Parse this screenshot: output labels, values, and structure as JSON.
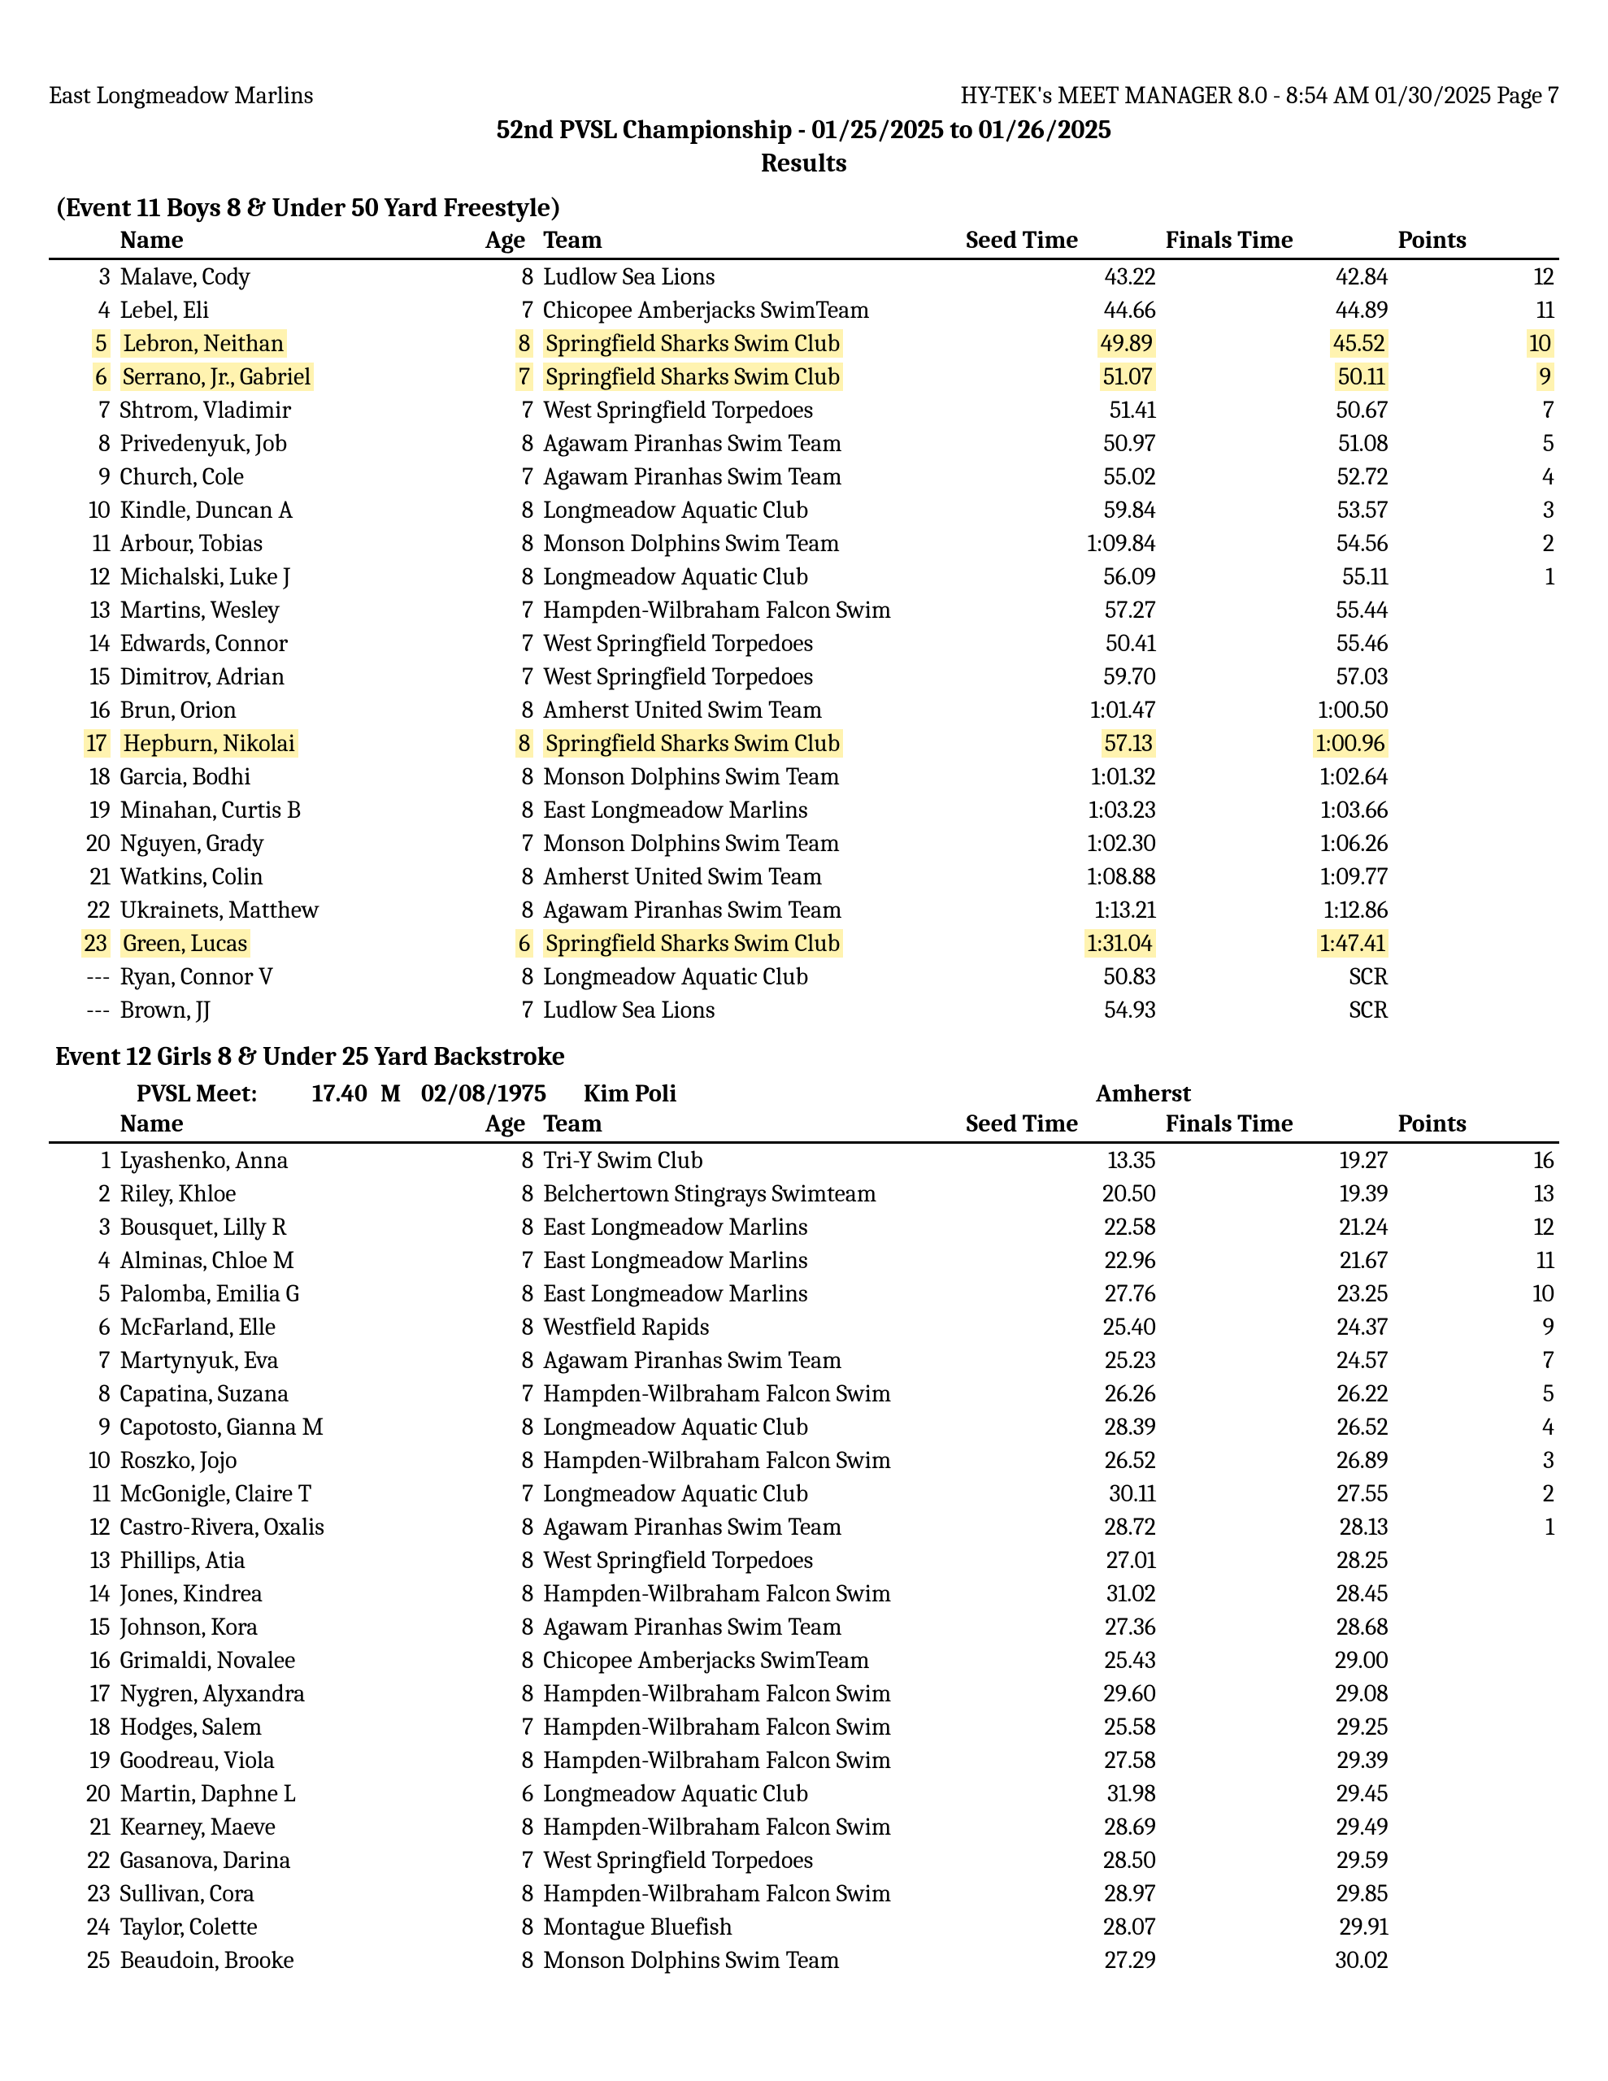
{
  "header": {
    "org_left": "East Longmeadow Marlins",
    "org_right": "HY-TEK's MEET MANAGER 8.0 - 8:54 AM  01/30/2025  Page 7",
    "meet_title": "52nd PVSL Championship - 01/25/2025 to 01/26/2025",
    "sub_title": "Results"
  },
  "columns": {
    "name": "Name",
    "age": "Age",
    "team": "Team",
    "seed": "Seed Time",
    "finals": "Finals Time",
    "points": "Points"
  },
  "colors": {
    "highlight": "#fff3b0",
    "text": "#000000",
    "rule": "#000000",
    "background": "#ffffff"
  },
  "event11": {
    "title": "(Event 11  Boys 8 & Under 50 Yard Freestyle)",
    "rows": [
      {
        "place": "3",
        "name": "Malave, Cody",
        "age": "8",
        "team": "Ludlow Sea Lions",
        "seed": "43.22",
        "finals": "42.84",
        "points": "12",
        "hl": false
      },
      {
        "place": "4",
        "name": "Lebel, Eli",
        "age": "7",
        "team": "Chicopee Amberjacks SwimTeam",
        "seed": "44.66",
        "finals": "44.89",
        "points": "11",
        "hl": false
      },
      {
        "place": "5",
        "name": "Lebron, Neithan",
        "age": "8",
        "team": "Springfield Sharks Swim Club",
        "seed": "49.89",
        "finals": "45.52",
        "points": "10",
        "hl": true
      },
      {
        "place": "6",
        "name": "Serrano, Jr., Gabriel",
        "age": "7",
        "team": "Springfield Sharks Swim Club",
        "seed": "51.07",
        "finals": "50.11",
        "points": "9",
        "hl": true
      },
      {
        "place": "7",
        "name": "Shtrom, Vladimir",
        "age": "7",
        "team": "West Springfield Torpedoes",
        "seed": "51.41",
        "finals": "50.67",
        "points": "7",
        "hl": false
      },
      {
        "place": "8",
        "name": "Privedenyuk, Job",
        "age": "8",
        "team": "Agawam Piranhas Swim Team",
        "seed": "50.97",
        "finals": "51.08",
        "points": "5",
        "hl": false
      },
      {
        "place": "9",
        "name": "Church, Cole",
        "age": "7",
        "team": "Agawam Piranhas Swim Team",
        "seed": "55.02",
        "finals": "52.72",
        "points": "4",
        "hl": false
      },
      {
        "place": "10",
        "name": "Kindle, Duncan A",
        "age": "8",
        "team": "Longmeadow Aquatic Club",
        "seed": "59.84",
        "finals": "53.57",
        "points": "3",
        "hl": false
      },
      {
        "place": "11",
        "name": "Arbour, Tobias",
        "age": "8",
        "team": "Monson Dolphins Swim Team",
        "seed": "1:09.84",
        "finals": "54.56",
        "points": "2",
        "hl": false
      },
      {
        "place": "12",
        "name": "Michalski, Luke J",
        "age": "8",
        "team": "Longmeadow Aquatic Club",
        "seed": "56.09",
        "finals": "55.11",
        "points": "1",
        "hl": false
      },
      {
        "place": "13",
        "name": "Martins, Wesley",
        "age": "7",
        "team": "Hampden-Wilbraham Falcon Swim",
        "seed": "57.27",
        "finals": "55.44",
        "points": "",
        "hl": false
      },
      {
        "place": "14",
        "name": "Edwards, Connor",
        "age": "7",
        "team": "West Springfield Torpedoes",
        "seed": "50.41",
        "finals": "55.46",
        "points": "",
        "hl": false
      },
      {
        "place": "15",
        "name": "Dimitrov, Adrian",
        "age": "7",
        "team": "West Springfield Torpedoes",
        "seed": "59.70",
        "finals": "57.03",
        "points": "",
        "hl": false
      },
      {
        "place": "16",
        "name": "Brun, Orion",
        "age": "8",
        "team": "Amherst United Swim Team",
        "seed": "1:01.47",
        "finals": "1:00.50",
        "points": "",
        "hl": false
      },
      {
        "place": "17",
        "name": "Hepburn, Nikolai",
        "age": "8",
        "team": "Springfield Sharks Swim Club",
        "seed": "57.13",
        "finals": "1:00.96",
        "points": "",
        "hl": true
      },
      {
        "place": "18",
        "name": "Garcia, Bodhi",
        "age": "8",
        "team": "Monson Dolphins Swim Team",
        "seed": "1:01.32",
        "finals": "1:02.64",
        "points": "",
        "hl": false
      },
      {
        "place": "19",
        "name": "Minahan, Curtis B",
        "age": "8",
        "team": "East Longmeadow Marlins",
        "seed": "1:03.23",
        "finals": "1:03.66",
        "points": "",
        "hl": false
      },
      {
        "place": "20",
        "name": "Nguyen, Grady",
        "age": "7",
        "team": "Monson Dolphins Swim Team",
        "seed": "1:02.30",
        "finals": "1:06.26",
        "points": "",
        "hl": false
      },
      {
        "place": "21",
        "name": "Watkins, Colin",
        "age": "8",
        "team": "Amherst United Swim Team",
        "seed": "1:08.88",
        "finals": "1:09.77",
        "points": "",
        "hl": false
      },
      {
        "place": "22",
        "name": "Ukrainets, Matthew",
        "age": "8",
        "team": "Agawam Piranhas Swim Team",
        "seed": "1:13.21",
        "finals": "1:12.86",
        "points": "",
        "hl": false
      },
      {
        "place": "23",
        "name": "Green, Lucas",
        "age": "6",
        "team": "Springfield Sharks Swim Club",
        "seed": "1:31.04",
        "finals": "1:47.41",
        "points": "",
        "hl": true
      },
      {
        "place": "---",
        "name": "Ryan, Connor V",
        "age": "8",
        "team": "Longmeadow Aquatic Club",
        "seed": "50.83",
        "finals": "SCR",
        "points": "",
        "hl": false
      },
      {
        "place": "---",
        "name": "Brown, JJ",
        "age": "7",
        "team": "Ludlow Sea Lions",
        "seed": "54.93",
        "finals": "SCR",
        "points": "",
        "hl": false
      }
    ]
  },
  "event12": {
    "title": "Event 12  Girls 8 & Under 25 Yard Backstroke",
    "record": {
      "label": "PVSL Meet:",
      "time": "17.40",
      "flag": "M",
      "date": "02/08/1975",
      "holder": "Kim Poli",
      "team": "Amherst"
    },
    "rows": [
      {
        "place": "1",
        "name": "Lyashenko, Anna",
        "age": "8",
        "team": "Tri-Y Swim Club",
        "seed": "13.35",
        "finals": "19.27",
        "points": "16"
      },
      {
        "place": "2",
        "name": "Riley, Khloe",
        "age": "8",
        "team": "Belchertown Stingrays Swimteam",
        "seed": "20.50",
        "finals": "19.39",
        "points": "13"
      },
      {
        "place": "3",
        "name": "Bousquet, Lilly R",
        "age": "8",
        "team": "East Longmeadow Marlins",
        "seed": "22.58",
        "finals": "21.24",
        "points": "12"
      },
      {
        "place": "4",
        "name": "Alminas, Chloe M",
        "age": "7",
        "team": "East Longmeadow Marlins",
        "seed": "22.96",
        "finals": "21.67",
        "points": "11"
      },
      {
        "place": "5",
        "name": "Palomba, Emilia G",
        "age": "8",
        "team": "East Longmeadow Marlins",
        "seed": "27.76",
        "finals": "23.25",
        "points": "10"
      },
      {
        "place": "6",
        "name": "McFarland, Elle",
        "age": "8",
        "team": "Westfield Rapids",
        "seed": "25.40",
        "finals": "24.37",
        "points": "9"
      },
      {
        "place": "7",
        "name": "Martynyuk, Eva",
        "age": "8",
        "team": "Agawam Piranhas Swim Team",
        "seed": "25.23",
        "finals": "24.57",
        "points": "7"
      },
      {
        "place": "8",
        "name": "Capatina, Suzana",
        "age": "7",
        "team": "Hampden-Wilbraham Falcon Swim",
        "seed": "26.26",
        "finals": "26.22",
        "points": "5"
      },
      {
        "place": "9",
        "name": "Capotosto, Gianna M",
        "age": "8",
        "team": "Longmeadow Aquatic Club",
        "seed": "28.39",
        "finals": "26.52",
        "points": "4"
      },
      {
        "place": "10",
        "name": "Roszko, Jojo",
        "age": "8",
        "team": "Hampden-Wilbraham Falcon Swim",
        "seed": "26.52",
        "finals": "26.89",
        "points": "3"
      },
      {
        "place": "11",
        "name": "McGonigle, Claire T",
        "age": "7",
        "team": "Longmeadow Aquatic Club",
        "seed": "30.11",
        "finals": "27.55",
        "points": "2"
      },
      {
        "place": "12",
        "name": "Castro-Rivera, Oxalis",
        "age": "8",
        "team": "Agawam Piranhas Swim Team",
        "seed": "28.72",
        "finals": "28.13",
        "points": "1"
      },
      {
        "place": "13",
        "name": "Phillips, Atia",
        "age": "8",
        "team": "West Springfield Torpedoes",
        "seed": "27.01",
        "finals": "28.25",
        "points": ""
      },
      {
        "place": "14",
        "name": "Jones, Kindrea",
        "age": "8",
        "team": "Hampden-Wilbraham Falcon Swim",
        "seed": "31.02",
        "finals": "28.45",
        "points": ""
      },
      {
        "place": "15",
        "name": "Johnson, Kora",
        "age": "8",
        "team": "Agawam Piranhas Swim Team",
        "seed": "27.36",
        "finals": "28.68",
        "points": ""
      },
      {
        "place": "16",
        "name": "Grimaldi, Novalee",
        "age": "8",
        "team": "Chicopee Amberjacks SwimTeam",
        "seed": "25.43",
        "finals": "29.00",
        "points": ""
      },
      {
        "place": "17",
        "name": "Nygren, Alyxandra",
        "age": "8",
        "team": "Hampden-Wilbraham Falcon Swim",
        "seed": "29.60",
        "finals": "29.08",
        "points": ""
      },
      {
        "place": "18",
        "name": "Hodges, Salem",
        "age": "7",
        "team": "Hampden-Wilbraham Falcon Swim",
        "seed": "25.58",
        "finals": "29.25",
        "points": ""
      },
      {
        "place": "19",
        "name": "Goodreau, Viola",
        "age": "8",
        "team": "Hampden-Wilbraham Falcon Swim",
        "seed": "27.58",
        "finals": "29.39",
        "points": ""
      },
      {
        "place": "20",
        "name": "Martin, Daphne L",
        "age": "6",
        "team": "Longmeadow Aquatic Club",
        "seed": "31.98",
        "finals": "29.45",
        "points": ""
      },
      {
        "place": "21",
        "name": "Kearney, Maeve",
        "age": "8",
        "team": "Hampden-Wilbraham Falcon Swim",
        "seed": "28.69",
        "finals": "29.49",
        "points": ""
      },
      {
        "place": "22",
        "name": "Gasanova, Darina",
        "age": "7",
        "team": "West Springfield Torpedoes",
        "seed": "28.50",
        "finals": "29.59",
        "points": ""
      },
      {
        "place": "23",
        "name": "Sullivan, Cora",
        "age": "8",
        "team": "Hampden-Wilbraham Falcon Swim",
        "seed": "28.97",
        "finals": "29.85",
        "points": ""
      },
      {
        "place": "24",
        "name": "Taylor, Colette",
        "age": "8",
        "team": "Montague Bluefish",
        "seed": "28.07",
        "finals": "29.91",
        "points": ""
      },
      {
        "place": "25",
        "name": "Beaudoin, Brooke",
        "age": "8",
        "team": "Monson Dolphins Swim Team",
        "seed": "27.29",
        "finals": "30.02",
        "points": ""
      }
    ]
  }
}
